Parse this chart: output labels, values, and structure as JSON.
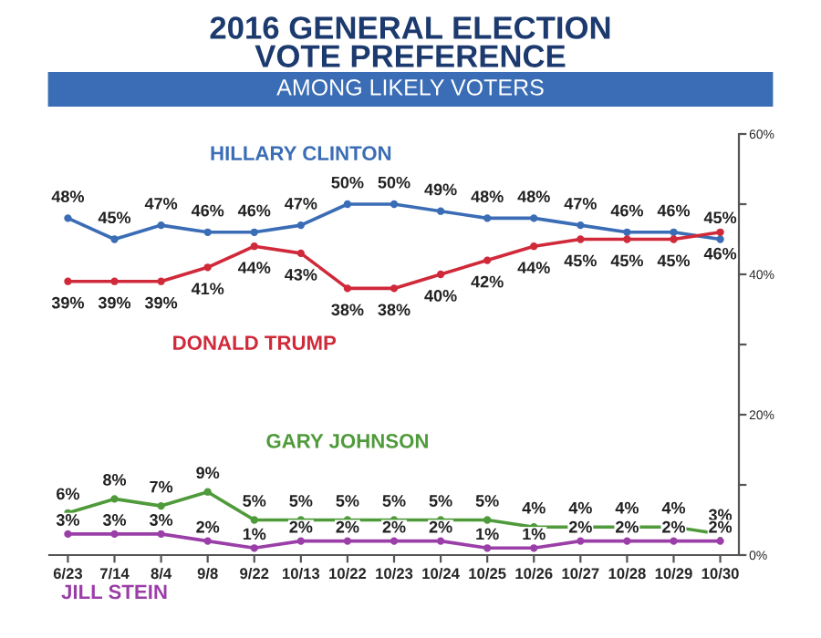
{
  "chart_data": {
    "type": "line",
    "title": "2016 GENERAL ELECTION\nVOTE PREFERENCE",
    "subtitle": "AMONG LIKELY VOTERS",
    "categories": [
      "6/23",
      "7/14",
      "8/4",
      "9/8",
      "9/22",
      "10/13",
      "10/22",
      "10/23",
      "10/24",
      "10/25",
      "10/26",
      "10/27",
      "10/28",
      "10/29",
      "10/30"
    ],
    "series": [
      {
        "name": "HILLARY CLINTON",
        "color": "#3a6db5",
        "values": [
          48,
          45,
          47,
          46,
          46,
          47,
          50,
          50,
          49,
          48,
          48,
          47,
          46,
          46,
          45
        ],
        "value_labels": [
          "48%",
          "45%",
          "47%",
          "46%",
          "46%",
          "47%",
          "50%",
          "50%",
          "49%",
          "48%",
          "48%",
          "47%",
          "46%",
          "46%",
          "45%"
        ]
      },
      {
        "name": "DONALD TRUMP",
        "color": "#d0293a",
        "values": [
          39,
          39,
          39,
          41,
          44,
          43,
          38,
          38,
          40,
          42,
          44,
          45,
          45,
          45,
          46
        ],
        "value_labels": [
          "39%",
          "39%",
          "39%",
          "41%",
          "44%",
          "43%",
          "38%",
          "38%",
          "40%",
          "42%",
          "44%",
          "45%",
          "45%",
          "45%",
          "46%"
        ]
      },
      {
        "name": "GARY JOHNSON",
        "color": "#4f9a3a",
        "values": [
          6,
          8,
          7,
          9,
          5,
          5,
          5,
          5,
          5,
          5,
          4,
          4,
          4,
          4,
          3
        ],
        "value_labels": [
          "6%",
          "8%",
          "7%",
          "9%",
          "5%",
          "5%",
          "5%",
          "5%",
          "5%",
          "5%",
          "4%",
          "4%",
          "4%",
          "4%",
          "3%"
        ]
      },
      {
        "name": "JILL STEIN",
        "color": "#9b3fa8",
        "values": [
          3,
          3,
          3,
          2,
          1,
          2,
          2,
          2,
          2,
          1,
          1,
          2,
          2,
          2,
          2
        ],
        "value_labels": [
          "3%",
          "3%",
          "3%",
          "2%",
          "1%",
          "2%",
          "2%",
          "2%",
          "2%",
          "1%",
          "1%",
          "2%",
          "2%",
          "2%",
          "2%"
        ]
      }
    ],
    "ylim": [
      0,
      60
    ],
    "yticks": [
      {
        "value": 0,
        "label": "0%"
      },
      {
        "value": 10,
        "label": null
      },
      {
        "value": 20,
        "label": "20%"
      },
      {
        "value": 30,
        "label": null
      },
      {
        "value": 40,
        "label": "40%"
      },
      {
        "value": 50,
        "label": null
      },
      {
        "value": 60,
        "label": "60%"
      }
    ],
    "marker": "circle",
    "line_style": "solid",
    "grid": false,
    "legend": false
  }
}
